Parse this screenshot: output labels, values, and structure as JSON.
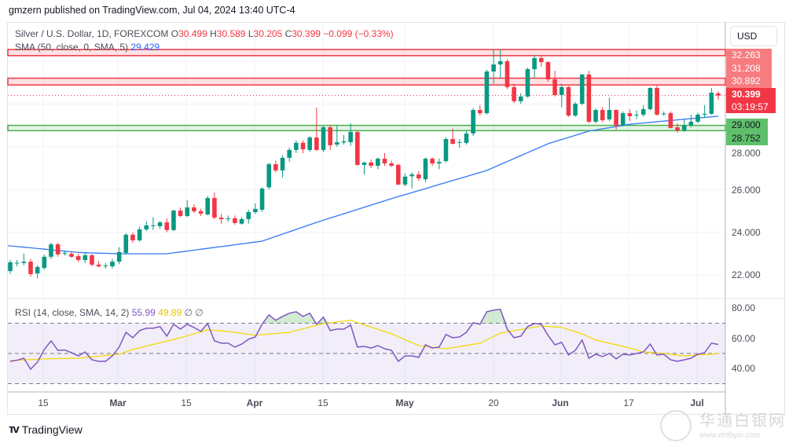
{
  "header": {
    "published": "gmzern published on TradingView.com, Jul 04, 2024 13:40 UTC-4"
  },
  "legend": {
    "symbol": "Silver / U.S. Dollar, 1D, FOREXCOM",
    "o_label": "O",
    "o": "30.499",
    "h_label": "H",
    "h": "30.589",
    "l_label": "L",
    "l": "30.205",
    "c_label": "C",
    "c": "30.399",
    "change": "−0.099 (−0.33%)",
    "sma_label": "SMA (50, close, 0, SMA, 5)",
    "sma_value": "29.429"
  },
  "rsi_legend": {
    "label": "RSI (14, close, SMA, 14, 2)",
    "rsi": "55.99",
    "rsi_sma": "49.89",
    "x1": "∅",
    "x2": "∅"
  },
  "currency_button": "USD",
  "price_labels": {
    "z1": "32.263",
    "z2": "31.208",
    "z3": "30.892",
    "last": "30.399",
    "countdown": "03:19:57",
    "g1": "29.000",
    "g2": "28.752"
  },
  "price_axis": [
    "28.000",
    "26.000",
    "24.000",
    "22.000"
  ],
  "rsi_axis": [
    "80.00",
    "60.00",
    "40.00"
  ],
  "time_axis": [
    {
      "label": "15",
      "bold": false
    },
    {
      "label": "Mar",
      "bold": true
    },
    {
      "label": "15",
      "bold": false
    },
    {
      "label": "Apr",
      "bold": true
    },
    {
      "label": "15",
      "bold": false
    },
    {
      "label": "May",
      "bold": true
    },
    {
      "label": "20",
      "bold": false
    },
    {
      "label": "Jun",
      "bold": true
    },
    {
      "label": "17",
      "bold": false
    },
    {
      "label": "Jul",
      "bold": true
    }
  ],
  "footer": {
    "brand": "TradingView"
  },
  "watermark": {
    "text": "华通白银网",
    "url": "www.ehtbyin.com"
  },
  "colors": {
    "up": "#089981",
    "down": "#f23645",
    "sma": "#3179f5",
    "rsi": "#7e57c2",
    "rsi_sma": "#f5d90a",
    "resistance": "#f23645",
    "support": "#4caf50"
  },
  "chart_data": {
    "type": "candlestick",
    "title": "Silver / U.S. Dollar, 1D, FOREXCOM",
    "ylim": [
      21.3,
      33.0
    ],
    "zones": [
      {
        "kind": "resistance",
        "low": 32.263,
        "high": 32.55
      },
      {
        "kind": "resistance",
        "low": 30.892,
        "high": 31.208
      },
      {
        "kind": "support",
        "low": 28.752,
        "high": 29.0
      }
    ],
    "last_price": 30.399,
    "bars_ohlc": [
      [
        22.18,
        22.7,
        22.05,
        22.59
      ],
      [
        22.55,
        22.7,
        22.4,
        22.57
      ],
      [
        22.56,
        23.0,
        22.45,
        22.62
      ],
      [
        22.62,
        22.75,
        21.92,
        22.04
      ],
      [
        22.07,
        22.45,
        21.85,
        22.37
      ],
      [
        22.33,
        22.95,
        22.25,
        22.85
      ],
      [
        22.85,
        23.5,
        22.75,
        23.43
      ],
      [
        23.43,
        23.5,
        22.85,
        22.96
      ],
      [
        23.0,
        23.15,
        22.9,
        23.03
      ],
      [
        22.99,
        23.12,
        22.8,
        22.85
      ],
      [
        22.88,
        22.98,
        22.6,
        22.7
      ],
      [
        22.7,
        23.05,
        22.55,
        22.92
      ],
      [
        22.92,
        22.98,
        22.4,
        22.48
      ],
      [
        22.48,
        22.65,
        22.35,
        22.4
      ],
      [
        22.42,
        22.55,
        22.3,
        22.44
      ],
      [
        22.4,
        22.75,
        22.3,
        22.62
      ],
      [
        22.62,
        23.3,
        22.5,
        23.07
      ],
      [
        23.03,
        23.95,
        22.95,
        23.88
      ],
      [
        23.88,
        23.98,
        23.5,
        23.62
      ],
      [
        23.62,
        24.25,
        23.55,
        24.13
      ],
      [
        24.13,
        24.5,
        24.05,
        24.32
      ],
      [
        24.3,
        24.7,
        24.1,
        24.32
      ],
      [
        24.28,
        24.52,
        24.15,
        24.46
      ],
      [
        24.46,
        24.65,
        24.0,
        24.1
      ],
      [
        24.1,
        25.05,
        24.05,
        25.01
      ],
      [
        25.01,
        25.15,
        24.7,
        24.76
      ],
      [
        24.76,
        25.5,
        24.7,
        25.16
      ],
      [
        25.16,
        25.3,
        24.9,
        24.98
      ],
      [
        24.98,
        25.1,
        24.75,
        24.87
      ],
      [
        24.83,
        25.7,
        24.78,
        25.6
      ],
      [
        25.6,
        25.85,
        24.6,
        24.68
      ],
      [
        24.68,
        24.85,
        24.4,
        24.61
      ],
      [
        24.63,
        24.78,
        24.5,
        24.65
      ],
      [
        24.65,
        24.78,
        24.35,
        24.43
      ],
      [
        24.4,
        24.7,
        24.35,
        24.61
      ],
      [
        24.61,
        25.05,
        24.4,
        24.94
      ],
      [
        24.94,
        25.35,
        24.85,
        25.09
      ],
      [
        25.05,
        26.1,
        24.95,
        26.04
      ],
      [
        26.1,
        27.25,
        26.0,
        27.18
      ],
      [
        27.18,
        27.35,
        26.8,
        26.89
      ],
      [
        26.89,
        27.6,
        26.55,
        27.48
      ],
      [
        27.48,
        27.95,
        27.3,
        27.85
      ],
      [
        27.85,
        28.3,
        27.7,
        28.18
      ],
      [
        28.18,
        28.3,
        27.7,
        27.88
      ],
      [
        27.85,
        28.5,
        27.75,
        28.43
      ],
      [
        28.43,
        29.83,
        27.8,
        27.85
      ],
      [
        27.85,
        29.0,
        27.75,
        28.91
      ],
      [
        28.91,
        29.0,
        27.85,
        28.07
      ],
      [
        28.1,
        29.0,
        28.0,
        28.21
      ],
      [
        28.2,
        28.55,
        28.1,
        28.25
      ],
      [
        28.21,
        29.1,
        28.05,
        28.69
      ],
      [
        28.69,
        28.72,
        27.1,
        27.15
      ],
      [
        27.15,
        27.3,
        26.7,
        27.26
      ],
      [
        27.26,
        27.4,
        27.0,
        27.11
      ],
      [
        27.11,
        27.5,
        26.95,
        27.44
      ],
      [
        27.44,
        27.7,
        27.1,
        27.22
      ],
      [
        27.22,
        27.35,
        27.05,
        27.11
      ],
      [
        27.15,
        27.2,
        26.2,
        26.23
      ],
      [
        26.23,
        26.75,
        26.15,
        26.6
      ],
      [
        26.62,
        26.8,
        26.05,
        26.7
      ],
      [
        26.7,
        26.85,
        26.4,
        26.52
      ],
      [
        26.48,
        27.5,
        26.35,
        27.44
      ],
      [
        27.44,
        27.5,
        27.1,
        27.22
      ],
      [
        27.22,
        27.45,
        26.95,
        27.29
      ],
      [
        27.33,
        28.45,
        27.25,
        28.36
      ],
      [
        28.36,
        28.85,
        28.1,
        28.14
      ],
      [
        28.2,
        28.35,
        27.95,
        28.22
      ],
      [
        28.18,
        28.75,
        28.1,
        28.62
      ],
      [
        28.62,
        29.8,
        28.5,
        29.72
      ],
      [
        29.72,
        29.95,
        29.45,
        29.57
      ],
      [
        29.57,
        31.6,
        29.5,
        31.52
      ],
      [
        31.52,
        32.55,
        30.95,
        31.85
      ],
      [
        31.85,
        32.55,
        31.2,
        32.0
      ],
      [
        32.0,
        32.1,
        30.7,
        30.79
      ],
      [
        30.79,
        30.95,
        30.05,
        30.13
      ],
      [
        30.13,
        30.5,
        30.0,
        30.35
      ],
      [
        30.35,
        31.7,
        30.3,
        31.63
      ],
      [
        31.63,
        32.3,
        31.2,
        32.15
      ],
      [
        32.15,
        32.3,
        31.75,
        31.96
      ],
      [
        31.96,
        32.0,
        31.05,
        31.15
      ],
      [
        31.15,
        31.55,
        30.35,
        30.42
      ],
      [
        30.42,
        30.95,
        29.85,
        30.79
      ],
      [
        30.79,
        30.85,
        29.4,
        29.46
      ],
      [
        29.46,
        30.1,
        29.4,
        30.01
      ],
      [
        30.01,
        31.4,
        29.95,
        31.38
      ],
      [
        31.38,
        31.55,
        29.1,
        29.17
      ],
      [
        29.17,
        29.8,
        29.1,
        29.72
      ],
      [
        29.72,
        29.85,
        29.15,
        29.24
      ],
      [
        29.28,
        30.3,
        29.2,
        29.72
      ],
      [
        29.72,
        29.75,
        28.8,
        28.99
      ],
      [
        28.99,
        29.65,
        28.95,
        29.57
      ],
      [
        29.57,
        29.75,
        29.2,
        29.43
      ],
      [
        29.48,
        29.7,
        29.3,
        29.5
      ],
      [
        29.5,
        29.95,
        29.4,
        29.76
      ],
      [
        29.76,
        30.78,
        29.7,
        30.75
      ],
      [
        30.75,
        30.9,
        29.45,
        29.5
      ],
      [
        29.52,
        29.65,
        29.45,
        29.55
      ],
      [
        29.57,
        29.65,
        28.85,
        28.88
      ],
      [
        28.91,
        29.1,
        28.65,
        28.76
      ],
      [
        28.76,
        29.3,
        28.7,
        28.99
      ],
      [
        28.99,
        29.5,
        28.9,
        29.17
      ],
      [
        29.17,
        29.6,
        29.1,
        29.5
      ],
      [
        29.5,
        29.95,
        29.35,
        29.54
      ],
      [
        29.54,
        30.75,
        29.5,
        30.53
      ],
      [
        30.499,
        30.589,
        30.205,
        30.399
      ]
    ],
    "sma50_anchors": [
      [
        0,
        23.36
      ],
      [
        10,
        23.05
      ],
      [
        16,
        22.99
      ],
      [
        23,
        22.99
      ],
      [
        37,
        23.58
      ],
      [
        45,
        24.46
      ],
      [
        56,
        25.57
      ],
      [
        70,
        26.89
      ],
      [
        79,
        28.14
      ],
      [
        85,
        28.73
      ],
      [
        91,
        29.05
      ],
      [
        95,
        29.17
      ],
      [
        104,
        29.43
      ]
    ],
    "rsi": {
      "ylim": [
        25,
        85
      ],
      "levels": [
        70,
        50,
        30
      ],
      "values": [
        44.8,
        45.5,
        46.9,
        39.6,
        44.3,
        52.6,
        58.3,
        52.1,
        52.3,
        50.5,
        48.4,
        51,
        45.8,
        44.8,
        44.8,
        48.4,
        54.2,
        64,
        60.4,
        65.1,
        66.7,
        66.7,
        67.7,
        61.5,
        69.3,
        66.1,
        69.3,
        67.2,
        64.6,
        69.8,
        58.3,
        56.8,
        56.8,
        54.2,
        56.2,
        59.4,
        60.9,
        69.3,
        75.5,
        71.9,
        74.5,
        76.6,
        77.6,
        74.5,
        76.6,
        69.3,
        74,
        65.1,
        66.1,
        66.1,
        68.8,
        54.2,
        54.7,
        53.6,
        55.2,
        53.1,
        52.1,
        44.8,
        48.4,
        48.4,
        47.4,
        55.7,
        53.6,
        54.2,
        62.5,
        60.4,
        60.9,
        64,
        70.3,
        69.3,
        77.6,
        78.6,
        79.2,
        66.1,
        60.4,
        61.5,
        67.7,
        69.8,
        69.3,
        62,
        55.7,
        57.3,
        49,
        52.1,
        58.9,
        46.9,
        49.5,
        47.9,
        50,
        46.4,
        49.5,
        49,
        50,
        51,
        56.2,
        49,
        49.5,
        45.8,
        44.8,
        45.8,
        46.9,
        49.5,
        50.5,
        56.8,
        55.99
      ],
      "sma_anchors": [
        [
          0,
          45.3
        ],
        [
          5,
          46.4
        ],
        [
          10,
          46.9
        ],
        [
          16,
          49.5
        ],
        [
          18,
          52.6
        ],
        [
          25,
          60.4
        ],
        [
          29,
          65.6
        ],
        [
          32,
          64.6
        ],
        [
          36,
          62
        ],
        [
          41,
          64
        ],
        [
          46,
          69.8
        ],
        [
          50,
          71.9
        ],
        [
          56,
          63
        ],
        [
          60,
          55.2
        ],
        [
          64,
          53.1
        ],
        [
          69,
          56.8
        ],
        [
          72,
          63.5
        ],
        [
          78,
          68.2
        ],
        [
          81,
          67.2
        ],
        [
          84,
          63
        ],
        [
          86,
          58.9
        ],
        [
          91,
          53.6
        ],
        [
          93,
          51
        ],
        [
          96,
          50
        ],
        [
          99,
          48.4
        ],
        [
          104,
          49.89
        ]
      ]
    }
  }
}
